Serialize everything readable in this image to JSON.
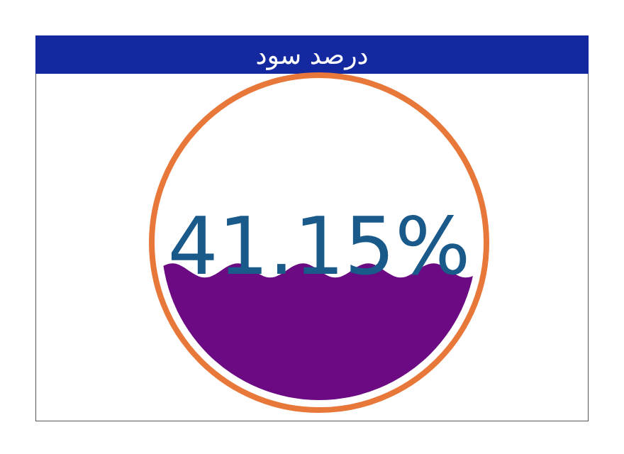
{
  "chart_data": {
    "type": "other",
    "title": "درصد سود",
    "values": [
      41.15
    ],
    "value_labels": [
      "41.15%"
    ],
    "color": "#6b0a82"
  }
}
